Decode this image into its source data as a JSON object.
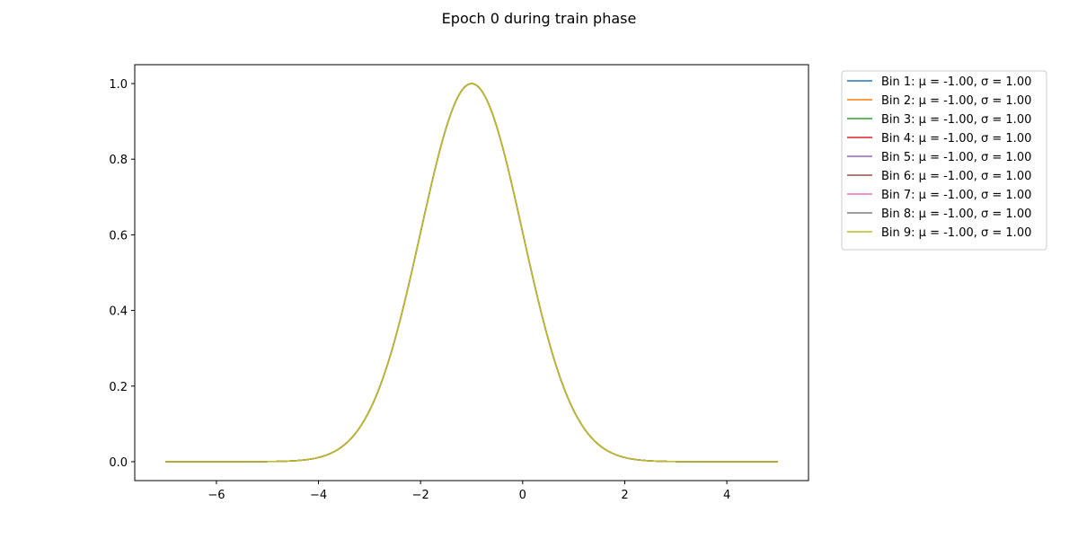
{
  "chart_data": {
    "type": "line",
    "title": "Epoch 0 during train phase",
    "xlabel": "",
    "ylabel": "",
    "xlim": [
      -7.6,
      5.6
    ],
    "ylim": [
      -0.05,
      1.05
    ],
    "x_ticks": [
      -6,
      -4,
      -2,
      0,
      2,
      4
    ],
    "x_tick_labels": [
      "−6",
      "−4",
      "−2",
      "0",
      "2",
      "4"
    ],
    "y_ticks": [
      0.0,
      0.2,
      0.4,
      0.6,
      0.8,
      1.0
    ],
    "y_tick_labels": [
      "0.0",
      "0.2",
      "0.4",
      "0.6",
      "0.8",
      "1.0"
    ],
    "x_range": [
      -7,
      5
    ],
    "grid": false,
    "legend_position": "outside-top-right",
    "series": [
      {
        "name": "Bin 1: μ = -1.00, σ = 1.00",
        "color": "#1f77b4",
        "mu": -1.0,
        "sigma": 1.0
      },
      {
        "name": "Bin 2: μ = -1.00, σ = 1.00",
        "color": "#ff7f0e",
        "mu": -1.0,
        "sigma": 1.0
      },
      {
        "name": "Bin 3: μ = -1.00, σ = 1.00",
        "color": "#2ca02c",
        "mu": -1.0,
        "sigma": 1.0
      },
      {
        "name": "Bin 4: μ = -1.00, σ = 1.00",
        "color": "#d62728",
        "mu": -1.0,
        "sigma": 1.0
      },
      {
        "name": "Bin 5: μ = -1.00, σ = 1.00",
        "color": "#9467bd",
        "mu": -1.0,
        "sigma": 1.0
      },
      {
        "name": "Bin 6: μ = -1.00, σ = 1.00",
        "color": "#8c564b",
        "mu": -1.0,
        "sigma": 1.0
      },
      {
        "name": "Bin 7: μ = -1.00, σ = 1.00",
        "color": "#e377c2",
        "mu": -1.0,
        "sigma": 1.0
      },
      {
        "name": "Bin 8: μ = -1.00, σ = 1.00",
        "color": "#7f7f7f",
        "mu": -1.0,
        "sigma": 1.0
      },
      {
        "name": "Bin 9: μ = -1.00, σ = 1.00",
        "color": "#bcbd22",
        "mu": -1.0,
        "sigma": 1.0
      }
    ]
  }
}
